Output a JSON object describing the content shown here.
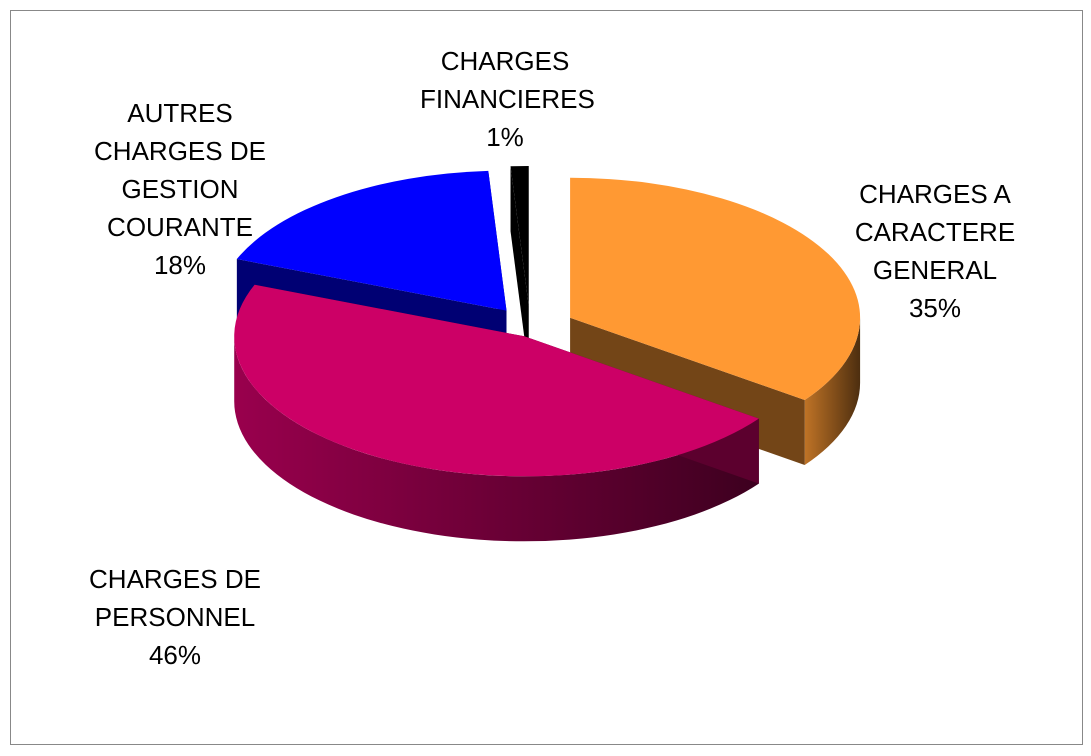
{
  "chart_data": {
    "type": "pie",
    "categories": [
      "CHARGES A CARACTERE GENERAL",
      "CHARGES DE PERSONNEL",
      "AUTRES CHARGES DE GESTION COURANTE",
      "CHARGES FINANCIERES"
    ],
    "values": [
      35,
      46,
      18,
      1
    ],
    "value_labels": [
      "35%",
      "46%",
      "18%",
      "1%"
    ],
    "colors": [
      "#ff9933",
      "#cc0066",
      "#0000ff",
      "#000000"
    ]
  }
}
